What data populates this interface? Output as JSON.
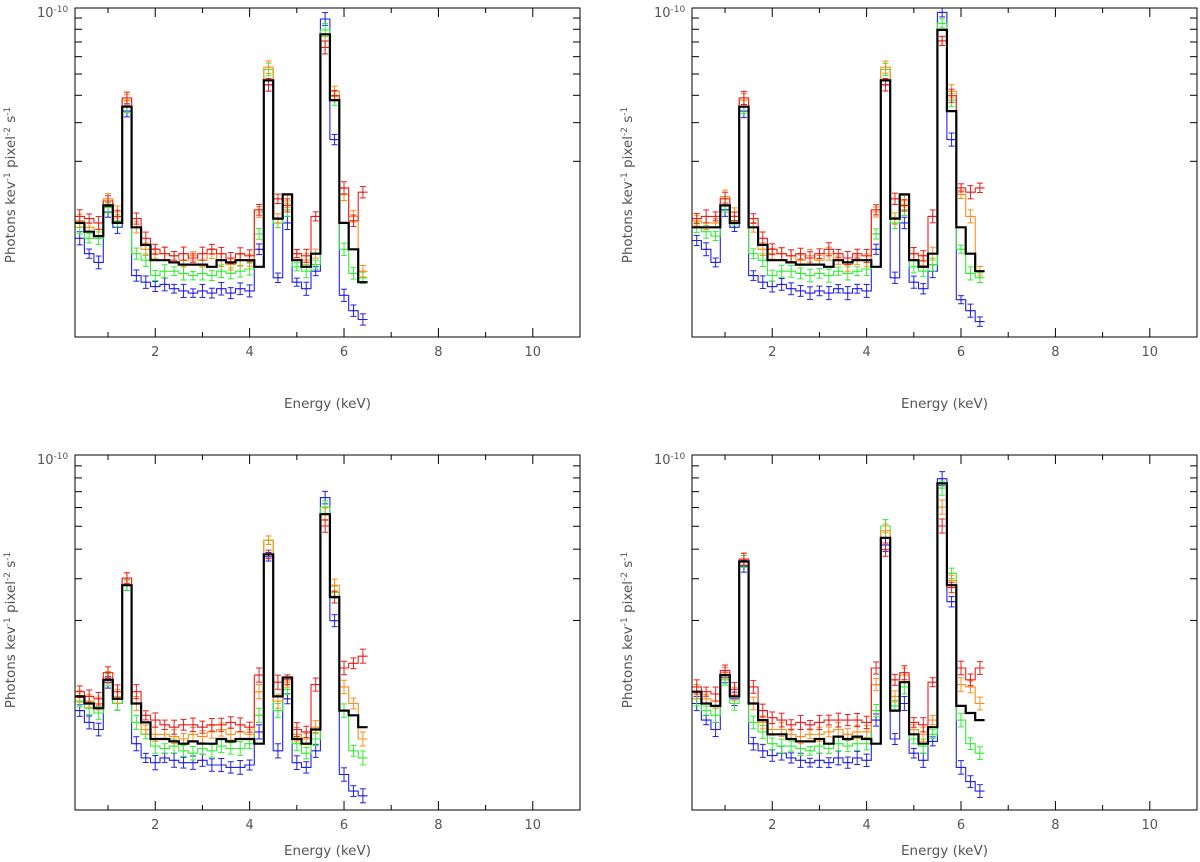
{
  "colors": {
    "model": "#000000",
    "series": {
      "blue": "#2020ee",
      "green": "#33ee33",
      "orange": "#ff8c1a",
      "red": "#ee1c1c"
    }
  },
  "chart_data": [
    {
      "type": "line",
      "panel": "top-left",
      "xlabel": "Energy (keV)",
      "ylabel": "Photons kev⁻¹ pixel⁻² s⁻¹",
      "ylabel_parts": {
        "base": "Photons kev",
        "e1": "-1",
        "mid": " pixel",
        "e2": "-2",
        "end": " s",
        "e3": "-1"
      },
      "ytick_label": {
        "base": "10",
        "exp": "-10"
      },
      "xticks": [
        "2",
        "4",
        "6",
        "8",
        "10"
      ],
      "xtick_values": [
        2,
        4,
        6,
        8,
        10
      ],
      "xlim": [
        0.3,
        11.0
      ],
      "ylim_log10": [
        -11.5,
        -10.0
      ],
      "step_width": 0.2,
      "model": {
        "name": "model",
        "color": "#000000",
        "y": [
          -10.98,
          -11.02,
          -11.04,
          -10.9,
          -10.98,
          -10.45,
          -11.0,
          -11.08,
          -11.15,
          -11.15,
          -11.16,
          -11.17,
          -11.17,
          -11.17,
          -11.18,
          -11.15,
          -11.16,
          -11.15,
          -11.15,
          -11.18,
          -10.33,
          -10.96,
          -10.85,
          -11.15,
          -11.18,
          -11.12,
          -10.12,
          -10.42,
          -10.98,
          -11.1,
          -11.25
        ]
      },
      "series": [
        {
          "name": "blue",
          "color": "#2020ee",
          "y": [
            -11.05,
            -11.12,
            -11.16,
            -10.93,
            -11.0,
            -10.47,
            -11.22,
            -11.25,
            -11.27,
            -11.26,
            -11.28,
            -11.29,
            -11.3,
            -11.29,
            -11.3,
            -11.28,
            -11.3,
            -11.28,
            -11.29,
            -11.1,
            -10.35,
            -11.23,
            -10.98,
            -11.25,
            -11.28,
            -11.2,
            -10.05,
            -10.6,
            -11.31,
            -11.38,
            -11.42
          ]
        },
        {
          "name": "green",
          "color": "#33ee33",
          "y": [
            -11.0,
            -11.05,
            -11.05,
            -10.91,
            -10.97,
            -10.45,
            -11.12,
            -11.15,
            -11.22,
            -11.2,
            -11.2,
            -11.21,
            -11.22,
            -11.21,
            -11.22,
            -11.2,
            -11.21,
            -11.2,
            -11.19,
            -11.03,
            -10.28,
            -10.98,
            -10.92,
            -11.18,
            -11.2,
            -11.17,
            -10.1,
            -10.42,
            -11.1,
            -11.21,
            -11.23
          ]
        },
        {
          "name": "orange",
          "color": "#ff8c1a",
          "y": [
            -10.97,
            -11.0,
            -11.01,
            -10.87,
            -10.93,
            -10.42,
            -11.0,
            -11.1,
            -11.12,
            -11.12,
            -11.13,
            -11.15,
            -11.13,
            -11.15,
            -11.12,
            -11.15,
            -11.17,
            -11.15,
            -11.15,
            -10.93,
            -10.27,
            -10.96,
            -10.88,
            -11.12,
            -11.15,
            -11.12,
            -10.15,
            -10.38,
            -10.85,
            -10.95,
            -11.2
          ]
        },
        {
          "name": "red",
          "color": "#ee1c1c",
          "y": [
            -10.95,
            -10.96,
            -10.98,
            -10.88,
            -10.95,
            -10.41,
            -10.96,
            -11.05,
            -11.1,
            -11.12,
            -11.13,
            -11.12,
            -11.14,
            -11.12,
            -11.1,
            -11.12,
            -11.14,
            -11.12,
            -11.13,
            -10.92,
            -10.35,
            -10.87,
            -10.9,
            -11.12,
            -11.13,
            -10.95,
            -10.18,
            -10.4,
            -10.82,
            -10.97,
            -10.84
          ]
        }
      ]
    },
    {
      "type": "line",
      "panel": "top-right",
      "xlabel": "Energy (keV)",
      "ylabel": "Photons kev⁻¹ pixel⁻² s⁻¹",
      "ylabel_parts": {
        "base": "Photons kev",
        "e1": "-1",
        "mid": " pixel",
        "e2": "-2",
        "end": " s",
        "e3": "-1"
      },
      "ytick_label": {
        "base": "10",
        "exp": "-10"
      },
      "xticks": [
        "2",
        "4",
        "6",
        "8",
        "10"
      ],
      "xtick_values": [
        2,
        4,
        6,
        8,
        10
      ],
      "xlim": [
        0.3,
        11.0
      ],
      "ylim_log10": [
        -11.5,
        -10.0
      ],
      "step_width": 0.2,
      "model": {
        "name": "model",
        "color": "#000000",
        "y": [
          -11.0,
          -11.0,
          -11.0,
          -10.9,
          -10.98,
          -10.45,
          -11.0,
          -11.08,
          -11.15,
          -11.15,
          -11.16,
          -11.17,
          -11.17,
          -11.17,
          -11.18,
          -11.15,
          -11.16,
          -11.15,
          -11.15,
          -11.18,
          -10.33,
          -10.96,
          -10.85,
          -11.15,
          -11.18,
          -11.12,
          -10.1,
          -10.47,
          -11.0,
          -11.12,
          -11.2
        ]
      },
      "series": [
        {
          "name": "blue",
          "color": "#2020ee",
          "y": [
            -11.06,
            -11.1,
            -11.16,
            -10.92,
            -11.0,
            -10.47,
            -11.22,
            -11.25,
            -11.27,
            -11.26,
            -11.28,
            -11.29,
            -11.3,
            -11.29,
            -11.3,
            -11.28,
            -11.3,
            -11.28,
            -11.29,
            -11.1,
            -10.35,
            -11.23,
            -10.98,
            -11.25,
            -11.28,
            -11.2,
            -10.02,
            -10.6,
            -11.33,
            -11.38,
            -11.43
          ]
        },
        {
          "name": "green",
          "color": "#33ee33",
          "y": [
            -11.0,
            -11.02,
            -11.04,
            -10.9,
            -10.97,
            -10.45,
            -11.12,
            -11.15,
            -11.22,
            -11.2,
            -11.2,
            -11.21,
            -11.22,
            -11.21,
            -11.22,
            -11.2,
            -11.21,
            -11.2,
            -11.19,
            -11.03,
            -10.28,
            -10.98,
            -10.92,
            -11.18,
            -11.2,
            -11.17,
            -10.07,
            -10.42,
            -11.1,
            -11.21,
            -11.23
          ]
        },
        {
          "name": "orange",
          "color": "#ff8c1a",
          "y": [
            -10.97,
            -10.98,
            -10.98,
            -10.86,
            -10.93,
            -10.42,
            -11.0,
            -11.1,
            -11.12,
            -11.12,
            -11.13,
            -11.15,
            -11.13,
            -11.15,
            -11.12,
            -11.15,
            -11.17,
            -11.15,
            -11.15,
            -10.93,
            -10.27,
            -10.96,
            -10.88,
            -11.12,
            -11.15,
            -11.12,
            -10.15,
            -10.38,
            -10.85,
            -10.95,
            -11.2
          ]
        },
        {
          "name": "red",
          "color": "#ee1c1c",
          "y": [
            -10.96,
            -10.95,
            -10.95,
            -10.87,
            -10.95,
            -10.41,
            -10.96,
            -11.05,
            -11.1,
            -11.12,
            -11.13,
            -11.12,
            -11.14,
            -11.12,
            -11.1,
            -11.12,
            -11.14,
            -11.12,
            -11.13,
            -10.92,
            -10.35,
            -10.87,
            -10.9,
            -11.12,
            -11.13,
            -10.95,
            -10.15,
            -10.4,
            -10.82,
            -10.84,
            -10.82
          ]
        }
      ]
    },
    {
      "type": "line",
      "panel": "bottom-left",
      "xlabel": "Energy (keV)",
      "ylabel": "Photons kev⁻¹ pixel⁻² s⁻¹",
      "ylabel_parts": {
        "base": "Photons kev",
        "e1": "-1",
        "mid": " pixel",
        "e2": "-2",
        "end": " s",
        "e3": "-1"
      },
      "ytick_label": {
        "base": "10",
        "exp": "-10"
      },
      "xticks": [
        "2",
        "4",
        "6",
        "8",
        "10"
      ],
      "xtick_values": [
        2,
        4,
        6,
        8,
        10
      ],
      "xlim": [
        0.3,
        11.0
      ],
      "ylim_log10": [
        -11.5,
        -10.0
      ],
      "step_width": 0.2,
      "model": {
        "name": "model",
        "color": "#000000",
        "y": [
          -11.02,
          -11.05,
          -11.07,
          -10.95,
          -11.03,
          -10.55,
          -11.05,
          -11.13,
          -11.2,
          -11.2,
          -11.21,
          -11.22,
          -11.21,
          -11.22,
          -11.22,
          -11.2,
          -11.21,
          -11.2,
          -11.2,
          -11.22,
          -10.42,
          -11.02,
          -10.94,
          -11.2,
          -11.22,
          -11.16,
          -10.25,
          -10.6,
          -11.08,
          -11.1,
          -11.15
        ]
      },
      "series": [
        {
          "name": "blue",
          "color": "#2020ee",
          "y": [
            -11.08,
            -11.13,
            -11.16,
            -10.96,
            -11.05,
            -10.55,
            -11.22,
            -11.28,
            -11.3,
            -11.28,
            -11.29,
            -11.3,
            -11.3,
            -11.29,
            -11.31,
            -11.31,
            -11.32,
            -11.32,
            -11.31,
            -11.17,
            -10.43,
            -11.25,
            -11.03,
            -11.3,
            -11.32,
            -11.25,
            -10.18,
            -10.7,
            -11.35,
            -11.42,
            -11.44
          ]
        },
        {
          "name": "green",
          "color": "#33ee33",
          "y": [
            -11.04,
            -11.07,
            -11.09,
            -10.95,
            -11.05,
            -10.55,
            -11.13,
            -11.18,
            -11.23,
            -11.24,
            -11.23,
            -11.25,
            -11.26,
            -11.24,
            -11.25,
            -11.23,
            -11.24,
            -11.24,
            -11.22,
            -11.1,
            -10.36,
            -11.08,
            -10.99,
            -11.22,
            -11.26,
            -11.2,
            -10.22,
            -10.58,
            -11.08,
            -11.25,
            -11.28
          ]
        },
        {
          "name": "orange",
          "color": "#ff8c1a",
          "y": [
            -11.02,
            -11.04,
            -11.05,
            -10.94,
            -11.02,
            -10.52,
            -11.05,
            -11.16,
            -11.18,
            -11.18,
            -11.19,
            -11.2,
            -11.18,
            -11.19,
            -11.17,
            -11.16,
            -11.18,
            -11.17,
            -11.18,
            -11.0,
            -10.36,
            -11.04,
            -10.96,
            -11.18,
            -11.2,
            -11.15,
            -10.25,
            -10.55,
            -10.98,
            -11.05,
            -11.2
          ]
        },
        {
          "name": "red",
          "color": "#ee1c1c",
          "y": [
            -11.0,
            -11.02,
            -11.03,
            -10.92,
            -11.0,
            -10.52,
            -11.0,
            -11.1,
            -11.12,
            -11.14,
            -11.15,
            -11.14,
            -11.14,
            -11.15,
            -11.14,
            -11.14,
            -11.13,
            -11.14,
            -11.15,
            -10.93,
            -10.42,
            -10.96,
            -10.95,
            -11.16,
            -11.17,
            -10.97,
            -10.3,
            -10.6,
            -10.9,
            -10.88,
            -10.85
          ]
        }
      ]
    },
    {
      "type": "line",
      "panel": "bottom-right",
      "xlabel": "Energy (keV)",
      "ylabel": "Photons kev⁻¹ pixel⁻² s⁻¹",
      "ylabel_parts": {
        "base": "Photons kev",
        "e1": "-1",
        "mid": " pixel",
        "e2": "-2",
        "end": " s",
        "e3": "-1"
      },
      "ytick_label": {
        "base": "10",
        "exp": "-10"
      },
      "xticks": [
        "2",
        "4",
        "6",
        "8",
        "10"
      ],
      "xtick_values": [
        2,
        4,
        6,
        8,
        10
      ],
      "xlim": [
        0.3,
        11.0
      ],
      "ylim_log10": [
        -11.5,
        -10.0
      ],
      "step_width": 0.2,
      "model": {
        "name": "model",
        "color": "#000000",
        "y": [
          -11.0,
          -11.05,
          -11.06,
          -10.93,
          -11.02,
          -10.45,
          -11.05,
          -11.12,
          -11.18,
          -11.18,
          -11.2,
          -11.21,
          -11.21,
          -11.2,
          -11.22,
          -11.19,
          -11.2,
          -11.19,
          -11.2,
          -11.22,
          -10.35,
          -11.08,
          -10.96,
          -11.18,
          -11.22,
          -11.15,
          -10.12,
          -10.55,
          -11.06,
          -11.09,
          -11.12
        ]
      },
      "series": [
        {
          "name": "blue",
          "color": "#2020ee",
          "y": [
            -11.05,
            -11.12,
            -11.16,
            -10.94,
            -11.03,
            -10.47,
            -11.22,
            -11.25,
            -11.27,
            -11.26,
            -11.28,
            -11.29,
            -11.3,
            -11.29,
            -11.3,
            -11.28,
            -11.3,
            -11.28,
            -11.29,
            -11.12,
            -10.38,
            -11.2,
            -11.05,
            -11.26,
            -11.29,
            -11.21,
            -10.1,
            -10.62,
            -11.32,
            -11.38,
            -11.42
          ]
        },
        {
          "name": "green",
          "color": "#33ee33",
          "y": [
            -11.03,
            -11.08,
            -11.1,
            -10.95,
            -11.05,
            -10.45,
            -11.13,
            -11.17,
            -11.22,
            -11.23,
            -11.23,
            -11.24,
            -11.25,
            -11.23,
            -11.24,
            -11.22,
            -11.23,
            -11.22,
            -11.22,
            -11.08,
            -10.3,
            -11.06,
            -10.98,
            -11.2,
            -11.23,
            -11.18,
            -10.14,
            -10.5,
            -11.12,
            -11.22,
            -11.26
          ]
        },
        {
          "name": "orange",
          "color": "#ff8c1a",
          "y": [
            -11.0,
            -11.03,
            -11.04,
            -10.92,
            -11.01,
            -10.44,
            -11.05,
            -11.13,
            -11.16,
            -11.16,
            -11.18,
            -11.19,
            -11.18,
            -11.18,
            -11.17,
            -11.16,
            -11.18,
            -11.17,
            -11.17,
            -10.97,
            -10.32,
            -11.02,
            -10.93,
            -11.16,
            -11.18,
            -11.12,
            -10.22,
            -10.53,
            -10.97,
            -10.98,
            -11.05
          ]
        },
        {
          "name": "red",
          "color": "#ee1c1c",
          "y": [
            -10.98,
            -11.0,
            -11.01,
            -10.91,
            -10.99,
            -10.44,
            -10.98,
            -11.08,
            -11.11,
            -11.12,
            -11.14,
            -11.13,
            -11.14,
            -11.13,
            -11.12,
            -11.12,
            -11.12,
            -11.12,
            -11.13,
            -10.9,
            -10.4,
            -10.95,
            -10.92,
            -11.13,
            -11.14,
            -10.96,
            -10.3,
            -10.56,
            -10.9,
            -10.95,
            -10.9
          ]
        }
      ]
    }
  ]
}
